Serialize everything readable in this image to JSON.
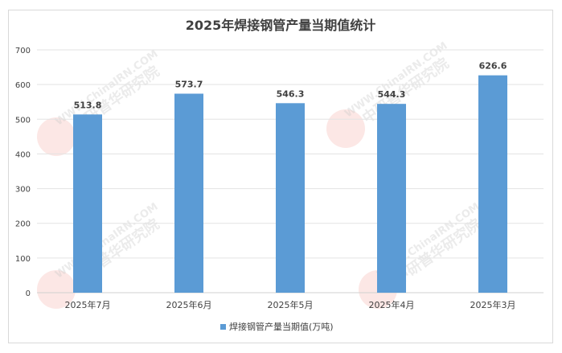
{
  "watermark": {
    "site": "WWW.ChinaIRN.COM",
    "name": "中研普华研究院",
    "logo": "CIRN"
  },
  "chart_data": {
    "type": "bar",
    "title": "2025年焊接钢管产量当期值统计",
    "categories": [
      "2025年7月",
      "2025年6月",
      "2025年5月",
      "2025年4月",
      "2025年3月"
    ],
    "series": [
      {
        "name": "焊接钢管产量当期值(万吨)",
        "values": [
          513.8,
          573.7,
          546.3,
          544.3,
          626.6
        ],
        "color": "#5b9bd5"
      }
    ],
    "value_labels": [
      "513.8",
      "573.7",
      "546.3",
      "544.3",
      "626.6"
    ],
    "yticks": [
      "0",
      "100",
      "200",
      "300",
      "400",
      "500",
      "600",
      "700"
    ],
    "ylim": [
      0,
      700
    ],
    "grid": true,
    "legend_position": "bottom"
  }
}
